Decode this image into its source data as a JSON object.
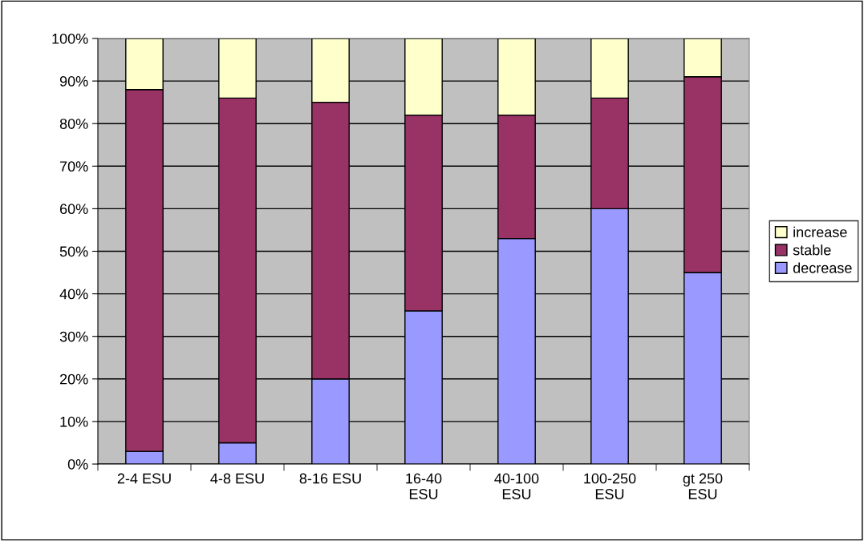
{
  "chart_data": {
    "type": "bar",
    "stacked": true,
    "categories": [
      "2-4 ESU",
      "4-8 ESU",
      "8-16 ESU",
      "16-40\nESU",
      "40-100\nESU",
      "100-250\nESU",
      "gt 250\nESU"
    ],
    "series": [
      {
        "name": "decrease",
        "color": "#9999ff",
        "values": [
          3,
          5,
          20,
          36,
          53,
          60,
          45
        ]
      },
      {
        "name": "stable",
        "color": "#993366",
        "values": [
          85,
          81,
          65,
          46,
          29,
          26,
          46
        ]
      },
      {
        "name": "increase",
        "color": "#ffffcc",
        "values": [
          12,
          14,
          15,
          18,
          18,
          14,
          9
        ]
      }
    ],
    "ylim": [
      0,
      100
    ],
    "yticks": [
      {
        "value": 0,
        "label": "0%"
      },
      {
        "value": 10,
        "label": "10%"
      },
      {
        "value": 20,
        "label": "20%"
      },
      {
        "value": 30,
        "label": "30%"
      },
      {
        "value": 40,
        "label": "40%"
      },
      {
        "value": 50,
        "label": "50%"
      },
      {
        "value": 60,
        "label": "60%"
      },
      {
        "value": 70,
        "label": "70%"
      },
      {
        "value": 80,
        "label": "80%"
      },
      {
        "value": 90,
        "label": "90%"
      },
      {
        "value": 100,
        "label": "100%"
      }
    ],
    "grid": "y",
    "legend": "right"
  }
}
